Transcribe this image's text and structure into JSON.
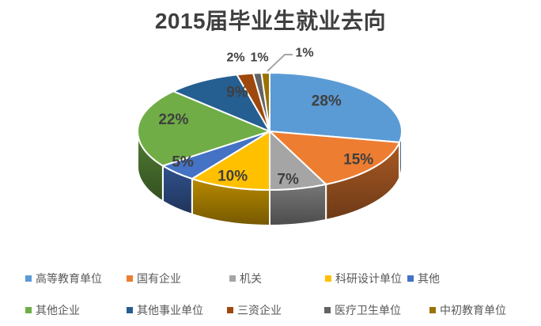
{
  "chart_data": {
    "type": "pie",
    "style": "3d",
    "title": "2015届毕业生就业去向",
    "direction": "clockwise",
    "start_angle_deg": 0,
    "legend_position": "bottom",
    "categories": [
      "高等教育单位",
      "国有企业",
      "机关",
      "科研设计单位",
      "其他",
      "其他企业",
      "其他事业单位",
      "三资企业",
      "医疗卫生单位",
      "中初教育单位"
    ],
    "values": [
      28,
      15,
      7,
      10,
      5,
      22,
      9,
      2,
      1,
      1
    ],
    "unit": "%",
    "data_labels": [
      "28%",
      "15%",
      "7%",
      "10%",
      "5%",
      "22%",
      "9%",
      "2%",
      "1%",
      "1%"
    ],
    "colors": [
      "#5B9BD5",
      "#ED7D31",
      "#A5A5A5",
      "#FFC000",
      "#4472C4",
      "#70AD47",
      "#255E91",
      "#9E480E",
      "#636363",
      "#997300"
    ],
    "label_color": "#3F3F3F",
    "title_color": "#3F3F3F",
    "legend_text_color": "#595959",
    "leader_line_color": "#A6A6A6",
    "background": "#FFFFFF"
  }
}
